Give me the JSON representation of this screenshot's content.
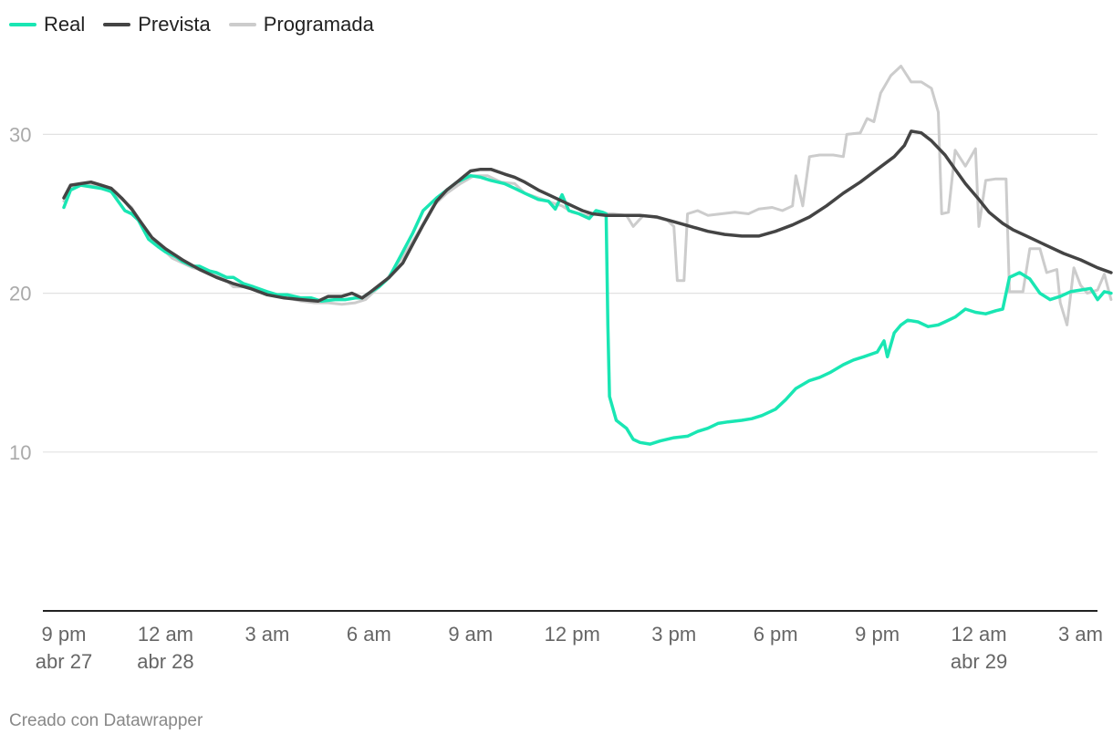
{
  "chart_data": {
    "type": "line",
    "title": "",
    "xlabel": "",
    "ylabel": "",
    "ylim": [
      0,
      34.5
    ],
    "xlim": [
      -0.2,
      30.9
    ],
    "grid": true,
    "legend_placement": "top-left",
    "y_ticks": [
      10,
      20,
      30
    ],
    "x_ticks": [
      {
        "x": 0,
        "label": "9 pm",
        "sublabel": "abr 27"
      },
      {
        "x": 3,
        "label": "12 am",
        "sublabel": "abr 28"
      },
      {
        "x": 6,
        "label": "3 am",
        "sublabel": ""
      },
      {
        "x": 9,
        "label": "6 am",
        "sublabel": ""
      },
      {
        "x": 12,
        "label": "9 am",
        "sublabel": ""
      },
      {
        "x": 15,
        "label": "12 pm",
        "sublabel": ""
      },
      {
        "x": 18,
        "label": "3 pm",
        "sublabel": ""
      },
      {
        "x": 21,
        "label": "6 pm",
        "sublabel": ""
      },
      {
        "x": 24,
        "label": "9 pm",
        "sublabel": ""
      },
      {
        "x": 27,
        "label": "12 am",
        "sublabel": "abr 29"
      },
      {
        "x": 30,
        "label": "3 am",
        "sublabel": ""
      }
    ],
    "series": [
      {
        "name": "Real",
        "color": "#19e6b3",
        "points": [
          [
            0,
            25.4
          ],
          [
            0.2,
            26.5
          ],
          [
            0.5,
            26.8
          ],
          [
            0.8,
            26.7
          ],
          [
            1.1,
            26.6
          ],
          [
            1.4,
            26.4
          ],
          [
            1.6,
            25.8
          ],
          [
            1.8,
            25.2
          ],
          [
            2,
            25
          ],
          [
            2.2,
            24.6
          ],
          [
            2.5,
            23.4
          ],
          [
            2.8,
            22.9
          ],
          [
            3,
            22.6
          ],
          [
            3.3,
            22.3
          ],
          [
            3.5,
            22
          ],
          [
            3.8,
            21.7
          ],
          [
            4,
            21.7
          ],
          [
            4.3,
            21.4
          ],
          [
            4.5,
            21.3
          ],
          [
            4.8,
            21
          ],
          [
            5,
            21
          ],
          [
            5.3,
            20.6
          ],
          [
            5.6,
            20.4
          ],
          [
            6,
            20.1
          ],
          [
            6.3,
            19.9
          ],
          [
            6.6,
            19.9
          ],
          [
            7,
            19.7
          ],
          [
            7.3,
            19.7
          ],
          [
            7.6,
            19.5
          ],
          [
            8,
            19.6
          ],
          [
            8.3,
            19.6
          ],
          [
            8.6,
            19.7
          ],
          [
            8.8,
            19.7
          ],
          [
            9,
            20
          ],
          [
            9.3,
            20.4
          ],
          [
            9.6,
            21
          ],
          [
            10,
            22.6
          ],
          [
            10.3,
            23.8
          ],
          [
            10.6,
            25.2
          ],
          [
            11,
            26
          ],
          [
            11.3,
            26.5
          ],
          [
            11.6,
            27
          ],
          [
            12,
            27.4
          ],
          [
            12.3,
            27.3
          ],
          [
            12.6,
            27.1
          ],
          [
            13,
            26.9
          ],
          [
            13.3,
            26.6
          ],
          [
            13.6,
            26.3
          ],
          [
            14,
            25.9
          ],
          [
            14.3,
            25.8
          ],
          [
            14.5,
            25.3
          ],
          [
            14.7,
            26.2
          ],
          [
            14.9,
            25.2
          ],
          [
            15.2,
            25
          ],
          [
            15.5,
            24.7
          ],
          [
            15.7,
            25.2
          ],
          [
            15.9,
            25.1
          ],
          [
            16,
            25
          ],
          [
            16.05,
            18
          ],
          [
            16.1,
            13.5
          ],
          [
            16.3,
            12
          ],
          [
            16.6,
            11.5
          ],
          [
            16.8,
            10.8
          ],
          [
            17,
            10.6
          ],
          [
            17.3,
            10.5
          ],
          [
            17.6,
            10.7
          ],
          [
            18,
            10.9
          ],
          [
            18.4,
            11
          ],
          [
            18.7,
            11.3
          ],
          [
            19,
            11.5
          ],
          [
            19.3,
            11.8
          ],
          [
            19.6,
            11.9
          ],
          [
            20,
            12
          ],
          [
            20.3,
            12.1
          ],
          [
            20.6,
            12.3
          ],
          [
            21,
            12.7
          ],
          [
            21.3,
            13.3
          ],
          [
            21.6,
            14
          ],
          [
            22,
            14.5
          ],
          [
            22.3,
            14.7
          ],
          [
            22.6,
            15
          ],
          [
            23,
            15.5
          ],
          [
            23.3,
            15.8
          ],
          [
            23.6,
            16
          ],
          [
            24,
            16.3
          ],
          [
            24.2,
            17
          ],
          [
            24.3,
            16
          ],
          [
            24.5,
            17.5
          ],
          [
            24.7,
            18
          ],
          [
            24.9,
            18.3
          ],
          [
            25.2,
            18.2
          ],
          [
            25.5,
            17.9
          ],
          [
            25.8,
            18
          ],
          [
            26,
            18.2
          ],
          [
            26.3,
            18.5
          ],
          [
            26.6,
            19
          ],
          [
            26.9,
            18.8
          ],
          [
            27.2,
            18.7
          ],
          [
            27.5,
            18.9
          ],
          [
            27.7,
            19
          ],
          [
            27.9,
            21
          ],
          [
            28.2,
            21.3
          ],
          [
            28.5,
            20.9
          ],
          [
            28.8,
            20
          ],
          [
            29.1,
            19.6
          ],
          [
            29.4,
            19.8
          ],
          [
            29.7,
            20.1
          ],
          [
            30,
            20.2
          ],
          [
            30.3,
            20.3
          ],
          [
            30.5,
            19.6
          ],
          [
            30.7,
            20.1
          ],
          [
            30.9,
            20
          ]
        ]
      },
      {
        "name": "Prevista",
        "color": "#444444",
        "points": [
          [
            0,
            26
          ],
          [
            0.2,
            26.8
          ],
          [
            0.5,
            26.9
          ],
          [
            0.8,
            27
          ],
          [
            1.1,
            26.8
          ],
          [
            1.4,
            26.6
          ],
          [
            1.7,
            26
          ],
          [
            2,
            25.3
          ],
          [
            2.3,
            24.4
          ],
          [
            2.6,
            23.5
          ],
          [
            3,
            22.8
          ],
          [
            3.5,
            22.1
          ],
          [
            4,
            21.5
          ],
          [
            4.5,
            21
          ],
          [
            5,
            20.6
          ],
          [
            5.5,
            20.3
          ],
          [
            6,
            19.9
          ],
          [
            6.5,
            19.7
          ],
          [
            7,
            19.6
          ],
          [
            7.5,
            19.5
          ],
          [
            7.8,
            19.8
          ],
          [
            8.2,
            19.8
          ],
          [
            8.5,
            20
          ],
          [
            8.8,
            19.7
          ],
          [
            9,
            20
          ],
          [
            9.3,
            20.5
          ],
          [
            9.6,
            21
          ],
          [
            10,
            21.9
          ],
          [
            10.3,
            23.1
          ],
          [
            10.6,
            24.3
          ],
          [
            11,
            25.8
          ],
          [
            11.3,
            26.5
          ],
          [
            11.6,
            27
          ],
          [
            12,
            27.7
          ],
          [
            12.3,
            27.8
          ],
          [
            12.6,
            27.8
          ],
          [
            13,
            27.5
          ],
          [
            13.3,
            27.3
          ],
          [
            13.6,
            27
          ],
          [
            14,
            26.5
          ],
          [
            14.3,
            26.2
          ],
          [
            14.6,
            25.9
          ],
          [
            15,
            25.5
          ],
          [
            15.3,
            25.2
          ],
          [
            15.6,
            25
          ],
          [
            16,
            24.9
          ],
          [
            16.5,
            24.9
          ],
          [
            17,
            24.9
          ],
          [
            17.5,
            24.8
          ],
          [
            18,
            24.5
          ],
          [
            18.5,
            24.2
          ],
          [
            19,
            23.9
          ],
          [
            19.5,
            23.7
          ],
          [
            20,
            23.6
          ],
          [
            20.5,
            23.6
          ],
          [
            21,
            23.9
          ],
          [
            21.5,
            24.3
          ],
          [
            22,
            24.8
          ],
          [
            22.5,
            25.5
          ],
          [
            23,
            26.3
          ],
          [
            23.5,
            27
          ],
          [
            24,
            27.8
          ],
          [
            24.5,
            28.6
          ],
          [
            24.8,
            29.3
          ],
          [
            25,
            30.2
          ],
          [
            25.3,
            30.1
          ],
          [
            25.6,
            29.6
          ],
          [
            26,
            28.7
          ],
          [
            26.3,
            27.8
          ],
          [
            26.6,
            26.9
          ],
          [
            27,
            25.9
          ],
          [
            27.3,
            25.1
          ],
          [
            27.7,
            24.4
          ],
          [
            28,
            24
          ],
          [
            28.5,
            23.5
          ],
          [
            29,
            23
          ],
          [
            29.5,
            22.5
          ],
          [
            30,
            22.1
          ],
          [
            30.5,
            21.6
          ],
          [
            30.9,
            21.3
          ]
        ]
      },
      {
        "name": "Programada",
        "color": "#cccccc",
        "points": [
          [
            0,
            25.8
          ],
          [
            0.3,
            26.8
          ],
          [
            0.8,
            26.8
          ],
          [
            1.2,
            26.6
          ],
          [
            1.6,
            26.1
          ],
          [
            2,
            25.4
          ],
          [
            2.4,
            24
          ],
          [
            2.8,
            23
          ],
          [
            3.2,
            22.2
          ],
          [
            3.6,
            21.8
          ],
          [
            3.8,
            21.6
          ],
          [
            4,
            21.5
          ],
          [
            4.3,
            21.3
          ],
          [
            4.6,
            21
          ],
          [
            4.8,
            20.8
          ],
          [
            5,
            20.4
          ],
          [
            5.4,
            20.4
          ],
          [
            5.8,
            20.2
          ],
          [
            6.2,
            19.9
          ],
          [
            6.6,
            19.7
          ],
          [
            7,
            19.5
          ],
          [
            7.4,
            19.4
          ],
          [
            7.8,
            19.4
          ],
          [
            8.2,
            19.3
          ],
          [
            8.6,
            19.4
          ],
          [
            8.9,
            19.6
          ],
          [
            9.2,
            20.2
          ],
          [
            9.5,
            20.8
          ],
          [
            9.8,
            21.7
          ],
          [
            10.1,
            22.6
          ],
          [
            10.5,
            24
          ],
          [
            10.9,
            25.5
          ],
          [
            11.3,
            26.3
          ],
          [
            11.7,
            26.9
          ],
          [
            12.1,
            27.4
          ],
          [
            12.5,
            27.4
          ],
          [
            12.9,
            27
          ],
          [
            13.3,
            26.9
          ],
          [
            13.6,
            26.3
          ],
          [
            14,
            26
          ],
          [
            14.4,
            25.7
          ],
          [
            14.7,
            25.5
          ],
          [
            15,
            25.1
          ],
          [
            15.4,
            24.9
          ],
          [
            15.8,
            25
          ],
          [
            16.2,
            25
          ],
          [
            16.6,
            24.9
          ],
          [
            16.8,
            24.2
          ],
          [
            17.1,
            24.9
          ],
          [
            17.4,
            24.8
          ],
          [
            17.8,
            24.6
          ],
          [
            18,
            24.2
          ],
          [
            18.1,
            20.8
          ],
          [
            18.3,
            20.8
          ],
          [
            18.4,
            25
          ],
          [
            18.7,
            25.2
          ],
          [
            19,
            24.9
          ],
          [
            19.4,
            25
          ],
          [
            19.8,
            25.1
          ],
          [
            20.2,
            25
          ],
          [
            20.5,
            25.3
          ],
          [
            20.9,
            25.4
          ],
          [
            21.2,
            25.2
          ],
          [
            21.5,
            25.5
          ],
          [
            21.6,
            27.4
          ],
          [
            21.8,
            25.5
          ],
          [
            22,
            28.6
          ],
          [
            22.3,
            28.7
          ],
          [
            22.7,
            28.7
          ],
          [
            23,
            28.6
          ],
          [
            23.1,
            30
          ],
          [
            23.5,
            30.1
          ],
          [
            23.7,
            31
          ],
          [
            23.9,
            30.8
          ],
          [
            24.1,
            32.6
          ],
          [
            24.4,
            33.7
          ],
          [
            24.7,
            34.3
          ],
          [
            25,
            33.3
          ],
          [
            25.3,
            33.3
          ],
          [
            25.6,
            32.9
          ],
          [
            25.8,
            31.4
          ],
          [
            25.9,
            25
          ],
          [
            26.1,
            25.1
          ],
          [
            26.3,
            29
          ],
          [
            26.6,
            28
          ],
          [
            26.9,
            29.1
          ],
          [
            27,
            24.2
          ],
          [
            27.2,
            27.1
          ],
          [
            27.5,
            27.2
          ],
          [
            27.8,
            27.2
          ],
          [
            27.9,
            20.1
          ],
          [
            28.3,
            20.1
          ],
          [
            28.5,
            22.8
          ],
          [
            28.8,
            22.8
          ],
          [
            29,
            21.3
          ],
          [
            29.3,
            21.5
          ],
          [
            29.4,
            19.4
          ],
          [
            29.6,
            18
          ],
          [
            29.8,
            21.6
          ],
          [
            30,
            20.5
          ],
          [
            30.2,
            20
          ],
          [
            30.5,
            20.2
          ],
          [
            30.7,
            21.2
          ],
          [
            30.9,
            19.6
          ]
        ]
      }
    ]
  },
  "footer": "Creado con Datawrapper"
}
